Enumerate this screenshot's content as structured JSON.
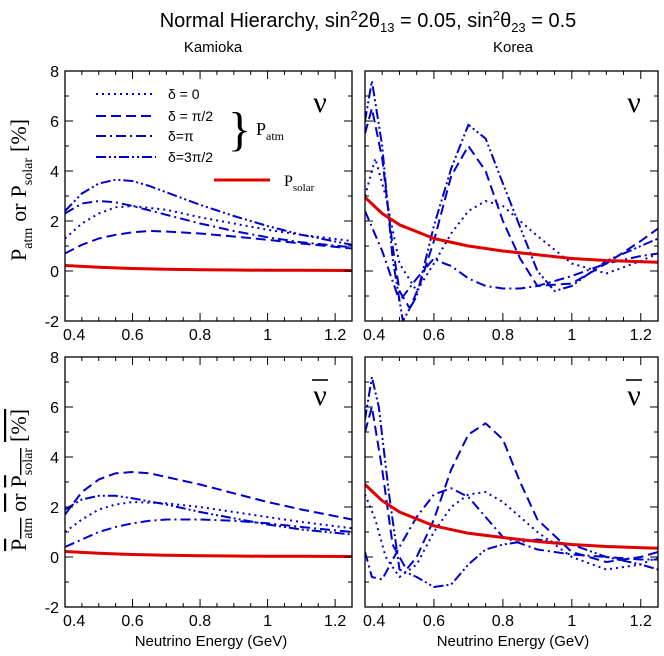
{
  "figure": {
    "title_main": "Normal Hierarchy, sin",
    "title_sup1": "2",
    "title_mid1": "2θ",
    "title_sub1": "13",
    "title_mid2": " = 0.05, sin",
    "title_sup2": "2",
    "title_mid3": "θ",
    "title_sub2": "23",
    "title_end": " = 0.5",
    "col_left": "Kamioka",
    "col_right": "Korea",
    "xlabel": "Neutrino Energy (GeV)",
    "ylabel_top": {
      "p1": "P",
      "s1": "atm",
      "or": "or",
      "p2": "P",
      "s2": "solar",
      "unit": "[%]"
    },
    "ylabel_bottom": {
      "p1": "P",
      "s1": "atm",
      "or": "or",
      "p2": "P",
      "s2": "solar",
      "unit": "[%]"
    },
    "nu_label": "ν",
    "legend": {
      "items": [
        "δ = 0",
        "δ = π/2",
        "δ=π",
        "δ=3π/2"
      ],
      "brace": "}",
      "group_p": "P",
      "group_sub": "atm",
      "solar_p": "P",
      "solar_sub": "solar"
    },
    "colors": {
      "atm": "#0000cc",
      "solar": "#e00000"
    }
  },
  "chart_data": [
    {
      "type": "line",
      "panel": "Kamioka ν",
      "xlim": [
        0.4,
        1.25
      ],
      "ylim": [
        -2,
        8
      ],
      "xticks": [
        "0.4",
        "0.6",
        "0.8",
        "1",
        "1.2"
      ],
      "yticks": [
        "-2",
        "0",
        "2",
        "4",
        "6",
        "8"
      ],
      "series": [
        {
          "name": "δ = 0",
          "x": [
            0.4,
            0.45,
            0.5,
            0.55,
            0.6,
            0.7,
            0.8,
            0.9,
            1.0,
            1.1,
            1.25
          ],
          "y": [
            1.3,
            1.9,
            2.3,
            2.55,
            2.6,
            2.45,
            2.15,
            1.9,
            1.65,
            1.45,
            1.2
          ]
        },
        {
          "name": "δ = π/2",
          "x": [
            0.4,
            0.45,
            0.5,
            0.55,
            0.6,
            0.65,
            0.7,
            0.8,
            0.9,
            1.0,
            1.1,
            1.25
          ],
          "y": [
            0.7,
            1.05,
            1.3,
            1.45,
            1.55,
            1.6,
            1.58,
            1.5,
            1.38,
            1.25,
            1.1,
            0.9
          ]
        },
        {
          "name": "δ=π",
          "x": [
            0.4,
            0.45,
            0.5,
            0.55,
            0.6,
            0.7,
            0.8,
            0.9,
            1.0,
            1.1,
            1.25
          ],
          "y": [
            2.3,
            2.7,
            2.8,
            2.75,
            2.6,
            2.25,
            1.9,
            1.6,
            1.35,
            1.15,
            0.95
          ]
        },
        {
          "name": "δ=3π/2",
          "x": [
            0.4,
            0.45,
            0.5,
            0.55,
            0.6,
            0.65,
            0.7,
            0.8,
            0.9,
            1.0,
            1.1,
            1.25
          ],
          "y": [
            2.4,
            3.1,
            3.5,
            3.65,
            3.6,
            3.4,
            3.15,
            2.65,
            2.2,
            1.8,
            1.45,
            1.05
          ]
        },
        {
          "name": "P_solar",
          "x": [
            0.4,
            0.5,
            0.6,
            0.7,
            0.8,
            0.9,
            1.0,
            1.1,
            1.25
          ],
          "y": [
            0.22,
            0.15,
            0.1,
            0.07,
            0.05,
            0.04,
            0.03,
            0.03,
            0.02
          ]
        }
      ]
    },
    {
      "type": "line",
      "panel": "Korea ν",
      "xlim": [
        0.4,
        1.25
      ],
      "ylim": [
        -2,
        8
      ],
      "xticks": [
        "0.4",
        "0.6",
        "0.8",
        "1",
        "1.2"
      ],
      "yticks": [
        "-2",
        "0",
        "2",
        "4",
        "6",
        "8"
      ],
      "series": [
        {
          "name": "δ = 0",
          "x": [
            0.4,
            0.43,
            0.46,
            0.5,
            0.55,
            0.6,
            0.65,
            0.7,
            0.75,
            0.8,
            0.9,
            1.0,
            1.1,
            1.2,
            1.25
          ],
          "y": [
            3.0,
            4.5,
            3.0,
            0.3,
            -0.8,
            0.3,
            1.5,
            2.4,
            2.8,
            2.6,
            1.4,
            0.3,
            -0.1,
            0.4,
            0.7
          ]
        },
        {
          "name": "δ = π/2",
          "x": [
            0.4,
            0.42,
            0.45,
            0.48,
            0.5,
            0.53,
            0.56,
            0.6,
            0.65,
            0.7,
            0.75,
            0.8,
            0.85,
            0.9,
            1.0,
            1.1,
            1.2,
            1.25
          ],
          "y": [
            5.5,
            6.5,
            4.5,
            1.0,
            -0.8,
            -1.5,
            -0.5,
            1.2,
            3.8,
            5.0,
            4.0,
            2.0,
            0.5,
            -0.6,
            -0.5,
            0.3,
            1.2,
            1.7
          ]
        },
        {
          "name": "δ=π",
          "x": [
            0.4,
            0.45,
            0.5,
            0.55,
            0.6,
            0.63,
            0.65,
            0.7,
            0.75,
            0.8,
            0.85,
            0.9,
            1.0,
            1.1,
            1.2,
            1.25
          ],
          "y": [
            2.4,
            0.8,
            -1.2,
            -0.3,
            0.5,
            0.3,
            0.2,
            -0.3,
            -0.6,
            -0.7,
            -0.7,
            -0.6,
            -0.2,
            0.3,
            0.6,
            0.7
          ]
        },
        {
          "name": "δ=3π/2",
          "x": [
            0.4,
            0.42,
            0.45,
            0.48,
            0.51,
            0.55,
            0.6,
            0.65,
            0.7,
            0.75,
            0.8,
            0.9,
            0.95,
            1.0,
            1.1,
            1.2,
            1.25
          ],
          "y": [
            6.0,
            7.6,
            5.0,
            0.5,
            -2.0,
            -1.0,
            1.8,
            4.1,
            5.85,
            5.3,
            3.5,
            0.0,
            -0.8,
            -0.6,
            0.4,
            1.0,
            1.3
          ]
        },
        {
          "name": "P_solar",
          "x": [
            0.4,
            0.45,
            0.5,
            0.6,
            0.7,
            0.8,
            0.9,
            1.0,
            1.1,
            1.25
          ],
          "y": [
            2.95,
            2.3,
            1.85,
            1.3,
            1.0,
            0.8,
            0.65,
            0.5,
            0.42,
            0.35
          ]
        }
      ]
    },
    {
      "type": "line",
      "panel": "Kamioka ν̄",
      "xlim": [
        0.4,
        1.25
      ],
      "ylim": [
        -2,
        8
      ],
      "xticks": [
        "0.4",
        "0.6",
        "0.8",
        "1",
        "1.2"
      ],
      "yticks": [
        "-2",
        "0",
        "2",
        "4",
        "6",
        "8"
      ],
      "series": [
        {
          "name": "δ = 0",
          "x": [
            0.4,
            0.45,
            0.5,
            0.55,
            0.6,
            0.7,
            0.8,
            0.9,
            1.0,
            1.1,
            1.25
          ],
          "y": [
            1.0,
            1.5,
            1.9,
            2.1,
            2.2,
            2.15,
            2.0,
            1.8,
            1.6,
            1.4,
            1.15
          ]
        },
        {
          "name": "δ = π/2",
          "x": [
            0.4,
            0.45,
            0.5,
            0.55,
            0.6,
            0.65,
            0.7,
            0.8,
            0.9,
            1.0,
            1.1,
            1.25
          ],
          "y": [
            1.7,
            2.6,
            3.1,
            3.35,
            3.4,
            3.35,
            3.2,
            2.9,
            2.55,
            2.2,
            1.9,
            1.5
          ]
        },
        {
          "name": "δ=π",
          "x": [
            0.4,
            0.45,
            0.5,
            0.55,
            0.6,
            0.65,
            0.7,
            0.8,
            0.9,
            1.0,
            1.1,
            1.25
          ],
          "y": [
            0.4,
            0.7,
            1.0,
            1.2,
            1.35,
            1.45,
            1.5,
            1.5,
            1.45,
            1.35,
            1.2,
            1.0
          ]
        },
        {
          "name": "δ=3π/2",
          "x": [
            0.4,
            0.45,
            0.5,
            0.55,
            0.6,
            0.7,
            0.8,
            0.9,
            1.0,
            1.1,
            1.25
          ],
          "y": [
            1.9,
            2.3,
            2.45,
            2.45,
            2.35,
            2.1,
            1.8,
            1.55,
            1.3,
            1.1,
            0.9
          ]
        },
        {
          "name": "P_solar",
          "x": [
            0.4,
            0.5,
            0.6,
            0.7,
            0.8,
            0.9,
            1.0,
            1.1,
            1.25
          ],
          "y": [
            0.22,
            0.15,
            0.1,
            0.07,
            0.05,
            0.04,
            0.03,
            0.03,
            0.02
          ]
        }
      ]
    },
    {
      "type": "line",
      "panel": "Korea ν̄",
      "xlim": [
        0.4,
        1.25
      ],
      "ylim": [
        -2,
        8
      ],
      "xticks": [
        "0.4",
        "0.6",
        "0.8",
        "1",
        "1.2"
      ],
      "yticks": [
        "-2",
        "0",
        "2",
        "4",
        "6",
        "8"
      ],
      "series": [
        {
          "name": "δ = 0",
          "x": [
            0.4,
            0.43,
            0.46,
            0.5,
            0.55,
            0.6,
            0.65,
            0.7,
            0.75,
            0.8,
            0.9,
            1.0,
            1.1,
            1.2,
            1.25
          ],
          "y": [
            2.5,
            1.5,
            0.0,
            -0.8,
            -0.3,
            1.0,
            2.0,
            2.5,
            2.6,
            2.2,
            1.0,
            0.0,
            -0.5,
            -0.3,
            0.0
          ]
        },
        {
          "name": "δ = π/2",
          "x": [
            0.4,
            0.42,
            0.45,
            0.48,
            0.52,
            0.55,
            0.6,
            0.65,
            0.7,
            0.75,
            0.8,
            0.85,
            0.9,
            1.0,
            1.1,
            1.2,
            1.25
          ],
          "y": [
            5.0,
            6.0,
            3.5,
            0.5,
            -0.5,
            0.0,
            1.5,
            3.5,
            4.9,
            5.35,
            4.7,
            3.0,
            1.5,
            0.2,
            -0.2,
            0.0,
            0.2
          ]
        },
        {
          "name": "δ=π",
          "x": [
            0.4,
            0.42,
            0.45,
            0.5,
            0.55,
            0.6,
            0.65,
            0.7,
            0.75,
            0.8,
            0.9,
            1.0,
            1.1,
            1.2,
            1.25
          ],
          "y": [
            0.2,
            -0.8,
            -0.9,
            0.4,
            1.6,
            2.5,
            2.75,
            2.4,
            1.6,
            0.8,
            0.3,
            0.1,
            0.0,
            -0.1,
            -0.1
          ]
        },
        {
          "name": "δ=3π/2",
          "x": [
            0.4,
            0.42,
            0.44,
            0.47,
            0.5,
            0.55,
            0.6,
            0.65,
            0.7,
            0.75,
            0.8,
            0.9,
            1.0,
            1.1,
            1.2,
            1.25
          ],
          "y": [
            5.5,
            7.2,
            6.0,
            2.5,
            -0.5,
            -0.8,
            -1.2,
            -1.1,
            -0.3,
            0.3,
            0.5,
            0.7,
            0.5,
            0.0,
            -0.3,
            -0.5
          ]
        },
        {
          "name": "P_solar",
          "x": [
            0.4,
            0.45,
            0.5,
            0.6,
            0.7,
            0.8,
            0.9,
            1.0,
            1.1,
            1.25
          ],
          "y": [
            2.9,
            2.25,
            1.8,
            1.25,
            0.95,
            0.78,
            0.62,
            0.5,
            0.42,
            0.35
          ]
        }
      ]
    }
  ]
}
